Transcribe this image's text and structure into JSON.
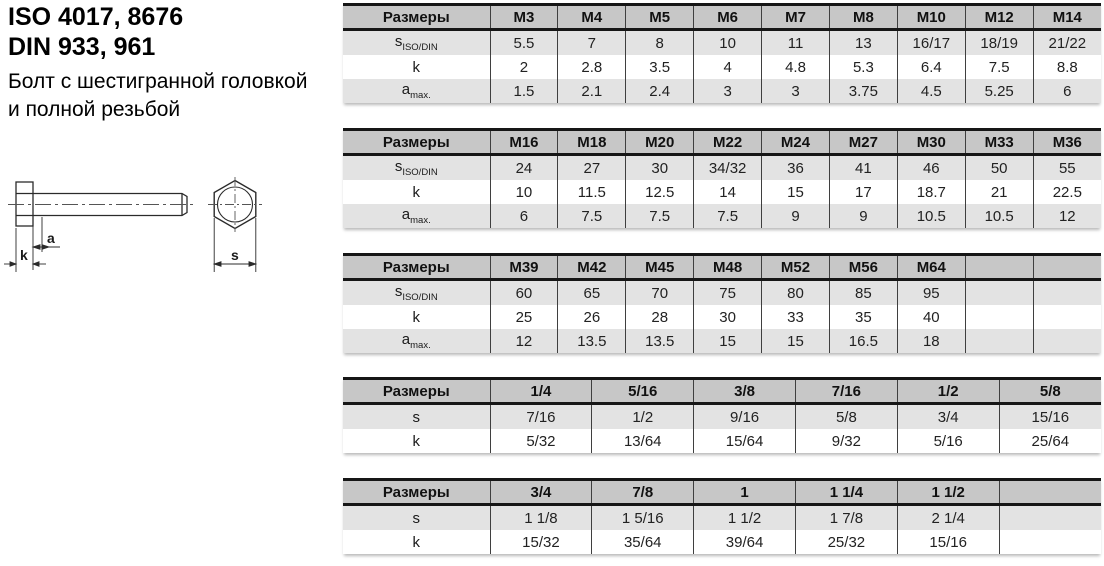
{
  "title": {
    "iso": "ISO 4017, 8676",
    "din": "DIN 933, 961",
    "desc_line1": "Болт с шестигранной головкой",
    "desc_line2": "и полной резьбой"
  },
  "diagram": {
    "label_a": "a",
    "label_k": "k",
    "label_s": "s"
  },
  "colors": {
    "header_bg": "#c7c7c7",
    "row_alt_bg": "#e3e3e3",
    "border_dark": "#161616",
    "grid_line": "#3f3f3f"
  },
  "tables": [
    {
      "kind": "metric",
      "header": [
        "Размеры",
        "M3",
        "M4",
        "M5",
        "M6",
        "M7",
        "M8",
        "M10",
        "M12",
        "M14"
      ],
      "rows": [
        {
          "label": {
            "base": "s",
            "sub": "ISO/DIN"
          },
          "values": [
            "5.5",
            "7",
            "8",
            "10",
            "11",
            "13",
            "16/17",
            "18/19",
            "21/22"
          ]
        },
        {
          "label": {
            "base": "k",
            "sub": ""
          },
          "values": [
            "2",
            "2.8",
            "3.5",
            "4",
            "4.8",
            "5.3",
            "6.4",
            "7.5",
            "8.8"
          ]
        },
        {
          "label": {
            "base": "a",
            "sub": "max."
          },
          "values": [
            "1.5",
            "2.1",
            "2.4",
            "3",
            "3",
            "3.75",
            "4.5",
            "5.25",
            "6"
          ]
        }
      ]
    },
    {
      "kind": "metric",
      "header": [
        "Размеры",
        "M16",
        "M18",
        "M20",
        "M22",
        "M24",
        "M27",
        "M30",
        "M33",
        "M36"
      ],
      "rows": [
        {
          "label": {
            "base": "s",
            "sub": "ISO/DIN"
          },
          "values": [
            "24",
            "27",
            "30",
            "34/32",
            "36",
            "41",
            "46",
            "50",
            "55"
          ]
        },
        {
          "label": {
            "base": "k",
            "sub": ""
          },
          "values": [
            "10",
            "11.5",
            "12.5",
            "14",
            "15",
            "17",
            "18.7",
            "21",
            "22.5"
          ]
        },
        {
          "label": {
            "base": "a",
            "sub": "max."
          },
          "values": [
            "6",
            "7.5",
            "7.5",
            "7.5",
            "9",
            "9",
            "10.5",
            "10.5",
            "12"
          ]
        }
      ]
    },
    {
      "kind": "metric",
      "header": [
        "Размеры",
        "M39",
        "M42",
        "M45",
        "M48",
        "M52",
        "M56",
        "M64",
        "",
        ""
      ],
      "rows": [
        {
          "label": {
            "base": "s",
            "sub": "ISO/DIN"
          },
          "values": [
            "60",
            "65",
            "70",
            "75",
            "80",
            "85",
            "95",
            "",
            ""
          ]
        },
        {
          "label": {
            "base": "k",
            "sub": ""
          },
          "values": [
            "25",
            "26",
            "28",
            "30",
            "33",
            "35",
            "40",
            "",
            ""
          ]
        },
        {
          "label": {
            "base": "a",
            "sub": "max."
          },
          "values": [
            "12",
            "13.5",
            "13.5",
            "15",
            "15",
            "16.5",
            "18",
            "",
            ""
          ]
        }
      ]
    },
    {
      "kind": "imperial",
      "header": [
        "Размеры",
        "1/4",
        "5/16",
        "3/8",
        "7/16",
        "1/2",
        "5/8"
      ],
      "rows": [
        {
          "label": {
            "base": "s",
            "sub": ""
          },
          "values": [
            "7/16",
            "1/2",
            "9/16",
            "5/8",
            "3/4",
            "15/16"
          ]
        },
        {
          "label": {
            "base": "k",
            "sub": ""
          },
          "values": [
            "5/32",
            "13/64",
            "15/64",
            "9/32",
            "5/16",
            "25/64"
          ]
        }
      ]
    },
    {
      "kind": "imperial",
      "header": [
        "Размеры",
        "3/4",
        "7/8",
        "1",
        "1 1/4",
        "1 1/2",
        ""
      ],
      "rows": [
        {
          "label": {
            "base": "s",
            "sub": ""
          },
          "values": [
            "1 1/8",
            "1 5/16",
            "1 1/2",
            "1 7/8",
            "2 1/4",
            ""
          ]
        },
        {
          "label": {
            "base": "k",
            "sub": ""
          },
          "values": [
            "15/32",
            "35/64",
            "39/64",
            "25/32",
            "15/16",
            ""
          ]
        }
      ]
    }
  ]
}
